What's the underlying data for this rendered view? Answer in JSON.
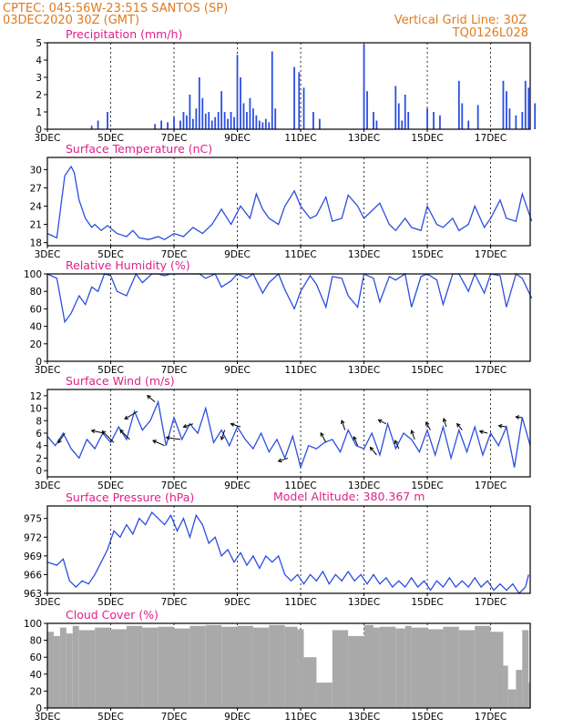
{
  "header": {
    "org_station": "CPTEC:   045:56W-23:51S   SANTOS (SP)",
    "run_time": "03DEC2020 30Z (GMT)",
    "grid_note": "Vertical Grid Line: 30Z",
    "code": "TQ0126L028",
    "model_altitude": "Model Altitude: 380.367 m"
  },
  "colors": {
    "series": "#2b4ee0",
    "bar": "#2b4ee0",
    "cloud": "#a9a9a9",
    "title": "#e0208a",
    "header": "#e07a1f"
  },
  "date_ticks": [
    "3DEC",
    "5DEC",
    "7DEC",
    "9DEC",
    "11DEC",
    "13DEC",
    "15DEC",
    "17DEC"
  ],
  "chart_data": [
    {
      "type": "bar",
      "title": "Precipitation (mm/h)",
      "xlim": [
        "03DEC2020 00Z",
        "18DEC2020 06Z"
      ],
      "ylim": [
        0,
        5
      ],
      "yticks": [
        0,
        1,
        2,
        3,
        4,
        5
      ],
      "grid": false,
      "x_days": [
        1.4,
        1.6,
        1.9,
        3.4,
        3.6,
        3.8,
        4.0,
        4.2,
        4.3,
        4.4,
        4.5,
        4.6,
        4.7,
        4.8,
        4.9,
        5.0,
        5.1,
        5.2,
        5.3,
        5.4,
        5.5,
        5.6,
        5.7,
        5.8,
        5.9,
        6.0,
        6.1,
        6.2,
        6.3,
        6.4,
        6.5,
        6.6,
        6.7,
        6.8,
        6.9,
        7.0,
        7.1,
        7.2,
        7.8,
        7.95,
        8.1,
        8.4,
        8.6,
        10.0,
        10.1,
        10.3,
        10.4,
        11.0,
        11.1,
        11.2,
        11.3,
        11.4,
        12.0,
        12.2,
        12.4,
        13.0,
        13.1,
        13.3,
        13.6,
        14.4,
        14.5,
        14.6,
        14.8,
        15.0,
        15.1,
        15.2,
        15.4
      ],
      "values": [
        0.2,
        0.5,
        1.0,
        0.3,
        0.5,
        0.4,
        0.7,
        0.5,
        1.0,
        0.8,
        2.0,
        0.6,
        1.2,
        3.0,
        1.8,
        0.9,
        1.0,
        0.5,
        0.7,
        1.0,
        2.2,
        1.0,
        0.6,
        1.0,
        0.7,
        4.3,
        3.0,
        1.5,
        1.0,
        1.8,
        1.2,
        0.8,
        0.5,
        0.4,
        0.6,
        0.4,
        4.5,
        1.2,
        3.6,
        3.3,
        2.4,
        1.0,
        0.6,
        4.9,
        2.2,
        1.0,
        0.5,
        2.5,
        1.5,
        0.5,
        2.0,
        1.0,
        1.2,
        1.0,
        0.8,
        2.8,
        1.5,
        0.5,
        1.4,
        2.8,
        2.2,
        1.2,
        0.8,
        1.0,
        2.8,
        2.4,
        1.5
      ]
    },
    {
      "type": "line",
      "title": "Surface Temperature (nC)",
      "xlim": [
        "03DEC2020 00Z",
        "18DEC2020 06Z"
      ],
      "ylim": [
        17.5,
        32
      ],
      "yticks": [
        18,
        21,
        24,
        27,
        30
      ],
      "grid": false,
      "x_days": [
        0,
        0.3,
        0.55,
        0.75,
        0.85,
        1.0,
        1.2,
        1.4,
        1.5,
        1.7,
        1.9,
        2.2,
        2.5,
        2.7,
        2.9,
        3.2,
        3.5,
        3.7,
        4.0,
        4.3,
        4.6,
        4.9,
        5.2,
        5.5,
        5.8,
        6.1,
        6.4,
        6.6,
        6.8,
        7.0,
        7.3,
        7.5,
        7.8,
        8.0,
        8.3,
        8.5,
        8.8,
        9.0,
        9.3,
        9.5,
        9.8,
        10.0,
        10.3,
        10.5,
        10.8,
        11.0,
        11.3,
        11.5,
        11.8,
        12.0,
        12.3,
        12.5,
        12.8,
        13.0,
        13.3,
        13.5,
        13.8,
        14.0,
        14.3,
        14.5,
        14.8,
        15.0,
        15.3
      ],
      "values": [
        19.5,
        18.8,
        29.0,
        30.5,
        29.5,
        25.0,
        22.0,
        20.5,
        21.0,
        20.0,
        20.8,
        19.5,
        19.0,
        20.0,
        18.8,
        18.5,
        19.0,
        18.5,
        19.5,
        19.0,
        20.5,
        19.5,
        21.0,
        23.5,
        21.0,
        24.0,
        22.0,
        26.0,
        23.5,
        22.0,
        21.0,
        24.0,
        26.5,
        24.0,
        22.0,
        22.5,
        25.5,
        21.5,
        22.0,
        25.8,
        24.0,
        22.0,
        23.5,
        24.5,
        21.0,
        20.0,
        22.0,
        20.5,
        20.0,
        24.0,
        21.0,
        20.5,
        22.0,
        20.0,
        21.0,
        24.0,
        20.5,
        22.0,
        25.0,
        22.0,
        21.5,
        26.0,
        21.5
      ]
    },
    {
      "type": "line",
      "title": "Relative Humidity (%)",
      "xlim": [
        "03DEC2020 00Z",
        "18DEC2020 06Z"
      ],
      "ylim": [
        0,
        100
      ],
      "yticks": [
        0,
        20,
        40,
        60,
        80,
        100
      ],
      "grid": false,
      "x_days": [
        0,
        0.3,
        0.55,
        0.75,
        1.0,
        1.2,
        1.4,
        1.6,
        1.8,
        2.0,
        2.2,
        2.5,
        2.8,
        3.0,
        3.3,
        3.5,
        3.7,
        3.9,
        4.2,
        4.5,
        4.8,
        5.0,
        5.3,
        5.5,
        5.8,
        6.0,
        6.3,
        6.5,
        6.8,
        7.0,
        7.3,
        7.5,
        7.8,
        8.0,
        8.3,
        8.5,
        8.8,
        9.0,
        9.3,
        9.5,
        9.8,
        10.0,
        10.3,
        10.5,
        10.8,
        11.0,
        11.3,
        11.5,
        11.8,
        12.0,
        12.3,
        12.5,
        12.8,
        13.0,
        13.3,
        13.5,
        13.8,
        14.0,
        14.3,
        14.5,
        14.8,
        15.0,
        15.3
      ],
      "values": [
        100,
        95,
        45,
        55,
        75,
        65,
        85,
        80,
        100,
        98,
        80,
        75,
        100,
        90,
        100,
        100,
        98,
        100,
        100,
        100,
        100,
        95,
        100,
        85,
        92,
        100,
        95,
        100,
        78,
        90,
        100,
        82,
        60,
        80,
        98,
        88,
        62,
        97,
        95,
        75,
        62,
        100,
        95,
        68,
        97,
        93,
        100,
        62,
        97,
        100,
        93,
        65,
        100,
        100,
        80,
        100,
        78,
        100,
        98,
        62,
        100,
        95,
        72
      ]
    },
    {
      "type": "line",
      "title": "Surface Wind (m/s)",
      "xlim": [
        "03DEC2020 00Z",
        "18DEC2020 06Z"
      ],
      "ylim": [
        -1,
        13
      ],
      "yticks": [
        0,
        2,
        4,
        6,
        8,
        10,
        12
      ],
      "grid": false,
      "x_days": [
        0,
        0.25,
        0.5,
        0.75,
        1.0,
        1.25,
        1.5,
        1.75,
        2.0,
        2.25,
        2.5,
        2.75,
        3.0,
        3.25,
        3.5,
        3.75,
        4.0,
        4.25,
        4.5,
        4.75,
        5.0,
        5.25,
        5.5,
        5.75,
        6.0,
        6.25,
        6.5,
        6.75,
        7.0,
        7.25,
        7.5,
        7.75,
        8.0,
        8.25,
        8.5,
        8.75,
        9.0,
        9.25,
        9.5,
        9.75,
        10.0,
        10.25,
        10.5,
        10.75,
        11.0,
        11.25,
        11.5,
        11.75,
        12.0,
        12.25,
        12.5,
        12.75,
        13.0,
        13.25,
        13.5,
        13.75,
        14.0,
        14.25,
        14.5,
        14.75,
        15.0,
        15.25
      ],
      "values": [
        5.5,
        4.0,
        6.0,
        3.5,
        2.0,
        5.0,
        3.5,
        6.0,
        4.5,
        7.0,
        5.0,
        9.5,
        6.5,
        8.0,
        11.0,
        4.0,
        8.5,
        5.0,
        7.5,
        6.0,
        10.0,
        4.5,
        6.5,
        4.0,
        7.0,
        5.0,
        3.5,
        6.0,
        3.0,
        5.0,
        2.0,
        5.5,
        0.5,
        4.0,
        3.5,
        4.5,
        5.0,
        3.0,
        6.5,
        4.0,
        3.5,
        6.0,
        2.5,
        7.5,
        3.5,
        6.0,
        5.0,
        3.0,
        6.5,
        2.5,
        7.0,
        2.0,
        6.5,
        3.0,
        7.0,
        2.5,
        6.0,
        4.0,
        7.0,
        0.5,
        8.5,
        4.0
      ],
      "vectors": [
        {
          "day": 0.55,
          "u": -1.0,
          "v": -1.5
        },
        {
          "day": 1.8,
          "u": -2.0,
          "v": 0.4
        },
        {
          "day": 2.1,
          "u": -1.8,
          "v": 1.8
        },
        {
          "day": 2.6,
          "u": -1.5,
          "v": 1.5
        },
        {
          "day": 2.85,
          "u": -2.0,
          "v": -1.2
        },
        {
          "day": 3.4,
          "u": -1.2,
          "v": 1.0
        },
        {
          "day": 3.7,
          "u": -1.8,
          "v": 0.8
        },
        {
          "day": 4.2,
          "u": -2.2,
          "v": 0.3
        },
        {
          "day": 4.6,
          "u": -1.5,
          "v": -0.5
        },
        {
          "day": 5.6,
          "u": -0.5,
          "v": -1.5
        },
        {
          "day": 6.1,
          "u": -1.5,
          "v": 0.5
        },
        {
          "day": 7.6,
          "u": -1.5,
          "v": -0.5
        },
        {
          "day": 8.8,
          "u": -0.8,
          "v": 1.5
        },
        {
          "day": 9.4,
          "u": -0.5,
          "v": 1.5
        },
        {
          "day": 9.8,
          "u": -0.6,
          "v": 1.4
        },
        {
          "day": 10.4,
          "u": -1.0,
          "v": 1.2
        },
        {
          "day": 10.7,
          "u": -1.2,
          "v": 0.6
        },
        {
          "day": 11.1,
          "u": -0.6,
          "v": 1.3
        },
        {
          "day": 11.6,
          "u": -0.5,
          "v": 1.4
        },
        {
          "day": 12.1,
          "u": -0.7,
          "v": 1.2
        },
        {
          "day": 12.6,
          "u": -0.4,
          "v": 1.3
        },
        {
          "day": 13.1,
          "u": -0.8,
          "v": 1.0
        },
        {
          "day": 13.9,
          "u": -1.2,
          "v": 0.3
        },
        {
          "day": 14.5,
          "u": -1.2,
          "v": 0.2
        },
        {
          "day": 15.0,
          "u": -1.0,
          "v": 0.1
        }
      ]
    },
    {
      "type": "line",
      "title": "Surface Pressure (hPa)",
      "xlim": [
        "03DEC2020 00Z",
        "18DEC2020 06Z"
      ],
      "ylim": [
        963,
        977
      ],
      "yticks": [
        963,
        966,
        969,
        972,
        975
      ],
      "grid": false,
      "x_days": [
        0,
        0.3,
        0.5,
        0.7,
        0.9,
        1.1,
        1.3,
        1.5,
        1.7,
        1.9,
        2.1,
        2.3,
        2.5,
        2.7,
        2.9,
        3.1,
        3.3,
        3.5,
        3.7,
        3.9,
        4.1,
        4.3,
        4.5,
        4.7,
        4.9,
        5.1,
        5.3,
        5.5,
        5.7,
        5.9,
        6.1,
        6.3,
        6.5,
        6.7,
        6.9,
        7.1,
        7.3,
        7.5,
        7.7,
        7.9,
        8.1,
        8.3,
        8.5,
        8.7,
        8.9,
        9.1,
        9.3,
        9.5,
        9.7,
        9.9,
        10.1,
        10.3,
        10.5,
        10.7,
        10.9,
        11.1,
        11.3,
        11.5,
        11.7,
        11.9,
        12.1,
        12.3,
        12.5,
        12.7,
        12.9,
        13.1,
        13.3,
        13.5,
        13.7,
        13.9,
        14.1,
        14.3,
        14.5,
        14.7,
        14.9,
        15.1,
        15.2
      ],
      "values": [
        968,
        967.5,
        968.5,
        965,
        964,
        965,
        964.5,
        966,
        968,
        970,
        973,
        972,
        974,
        972.5,
        975,
        974,
        976,
        975,
        974,
        975.5,
        973,
        975,
        972,
        975.5,
        974,
        971,
        972,
        969,
        970,
        968,
        969.5,
        967.5,
        969,
        967,
        969,
        968,
        969,
        966,
        965,
        966,
        964.5,
        966,
        965,
        966.5,
        964.5,
        966,
        965,
        966.5,
        965,
        966,
        964.5,
        966,
        964.5,
        965.5,
        964,
        965,
        964,
        965.5,
        964,
        965,
        963.5,
        965,
        964,
        965.5,
        964,
        965,
        964,
        965.5,
        964,
        965,
        963.5,
        964.5,
        963.5,
        964.5,
        963,
        964,
        966
      ]
    },
    {
      "type": "area",
      "title": "Cloud Cover (%)",
      "xlim": [
        "03DEC2020 00Z",
        "18DEC2020 06Z"
      ],
      "ylim": [
        0,
        100
      ],
      "yticks": [
        0,
        20,
        40,
        60,
        80,
        100
      ],
      "grid": false,
      "x_days": [
        0,
        0.2,
        0.4,
        0.6,
        0.8,
        1.0,
        1.5,
        2.0,
        2.5,
        3.0,
        3.5,
        4.0,
        4.5,
        5.0,
        5.5,
        6.0,
        6.3,
        6.5,
        7.0,
        7.5,
        7.9,
        8.1,
        8.5,
        9.0,
        9.5,
        10.0,
        10.3,
        10.5,
        11.0,
        11.3,
        11.5,
        12.0,
        12.5,
        13.0,
        13.5,
        14.0,
        14.4,
        14.55,
        14.8,
        15.0,
        15.2
      ],
      "values": [
        90,
        85,
        95,
        88,
        97,
        92,
        95,
        93,
        97,
        95,
        96,
        94,
        97,
        98,
        96,
        97,
        97,
        95,
        98,
        96,
        93,
        60,
        30,
        92,
        85,
        98,
        95,
        96,
        94,
        97,
        95,
        93,
        96,
        92,
        97,
        90,
        50,
        22,
        45,
        92,
        30
      ]
    }
  ]
}
